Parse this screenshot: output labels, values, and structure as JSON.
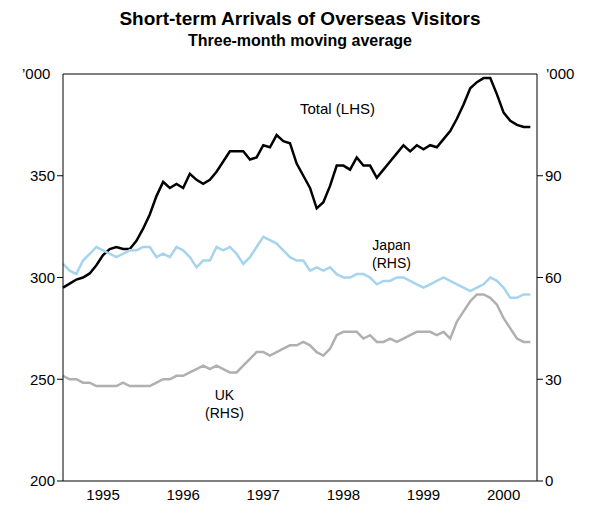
{
  "chart_data": {
    "type": "line",
    "title": "Short-term Arrivals of Overseas Visitors",
    "subtitle": "Three-month moving average",
    "ylabel": "’000",
    "y2label": "’000",
    "categories": [
      null,
      null,
      null,
      null,
      null,
      null,
      "1995",
      null,
      null,
      null,
      null,
      null,
      null,
      null,
      null,
      null,
      null,
      null,
      "1996",
      null,
      null,
      null,
      null,
      null,
      null,
      null,
      null,
      null,
      null,
      null,
      "1997",
      null,
      null,
      null,
      null,
      null,
      null,
      null,
      null,
      null,
      null,
      null,
      "1998",
      null,
      null,
      null,
      null,
      null,
      null,
      null,
      null,
      null,
      null,
      null,
      "1999",
      null,
      null,
      null,
      null,
      null,
      null,
      null,
      null,
      null,
      null,
      null,
      "2000",
      null,
      null,
      null,
      null,
      null
    ],
    "ylim": [
      200,
      400
    ],
    "yticks": [
      200,
      250,
      300,
      350
    ],
    "y2lim": [
      0,
      120
    ],
    "y2ticks": [
      0,
      30,
      60,
      90
    ],
    "grid": false,
    "series": [
      {
        "name": "Total (LHS)",
        "color": "#000000",
        "values": [
          295,
          297,
          299,
          300,
          302,
          306,
          311,
          314,
          315,
          314,
          314,
          318,
          324,
          331,
          340,
          347,
          344,
          346,
          344,
          351,
          348,
          346,
          348,
          352,
          357,
          362,
          362,
          362,
          358,
          359,
          365,
          364,
          370,
          367,
          366,
          356,
          350,
          344,
          334,
          337,
          345,
          355,
          355,
          353,
          359,
          355,
          355,
          349,
          353,
          357,
          361,
          365,
          362,
          365,
          363,
          365,
          364,
          368,
          372,
          378,
          385,
          393,
          396,
          398,
          398,
          390,
          381,
          377,
          375,
          374,
          374,
          null
        ]
      },
      {
        "name": "Japan (RHS)",
        "color": "#a6d4ee",
        "axis": "y2",
        "values": [
          64,
          62,
          61,
          65,
          67,
          69,
          68,
          67,
          66,
          67,
          68,
          68,
          69,
          69,
          66,
          67,
          66,
          69,
          68,
          66,
          63,
          65,
          65,
          69,
          68,
          69,
          67,
          64,
          66,
          69,
          72,
          71,
          70,
          68,
          66,
          65,
          65,
          62,
          63,
          62,
          63,
          61,
          60,
          60,
          61,
          61,
          60,
          58,
          59,
          59,
          60,
          60,
          59,
          58,
          57,
          58,
          59,
          60,
          59,
          58,
          57,
          56,
          57,
          58,
          60,
          59,
          57,
          54,
          54,
          55,
          55,
          null
        ]
      },
      {
        "name": "UK (RHS)",
        "color": "#b0b0b0",
        "axis": "y2",
        "values": [
          31,
          30,
          30,
          29,
          29,
          28,
          28,
          28,
          28,
          29,
          28,
          28,
          28,
          28,
          29,
          30,
          30,
          31,
          31,
          32,
          33,
          34,
          33,
          34,
          33,
          32,
          32,
          34,
          36,
          38,
          38,
          37,
          38,
          39,
          40,
          40,
          41,
          40,
          38,
          37,
          39,
          43,
          44,
          44,
          44,
          42,
          43,
          41,
          41,
          42,
          41,
          42,
          43,
          44,
          44,
          44,
          43,
          44,
          42,
          47,
          50,
          53,
          55,
          55,
          54,
          52,
          48,
          45,
          42,
          41,
          41,
          null
        ]
      }
    ]
  }
}
